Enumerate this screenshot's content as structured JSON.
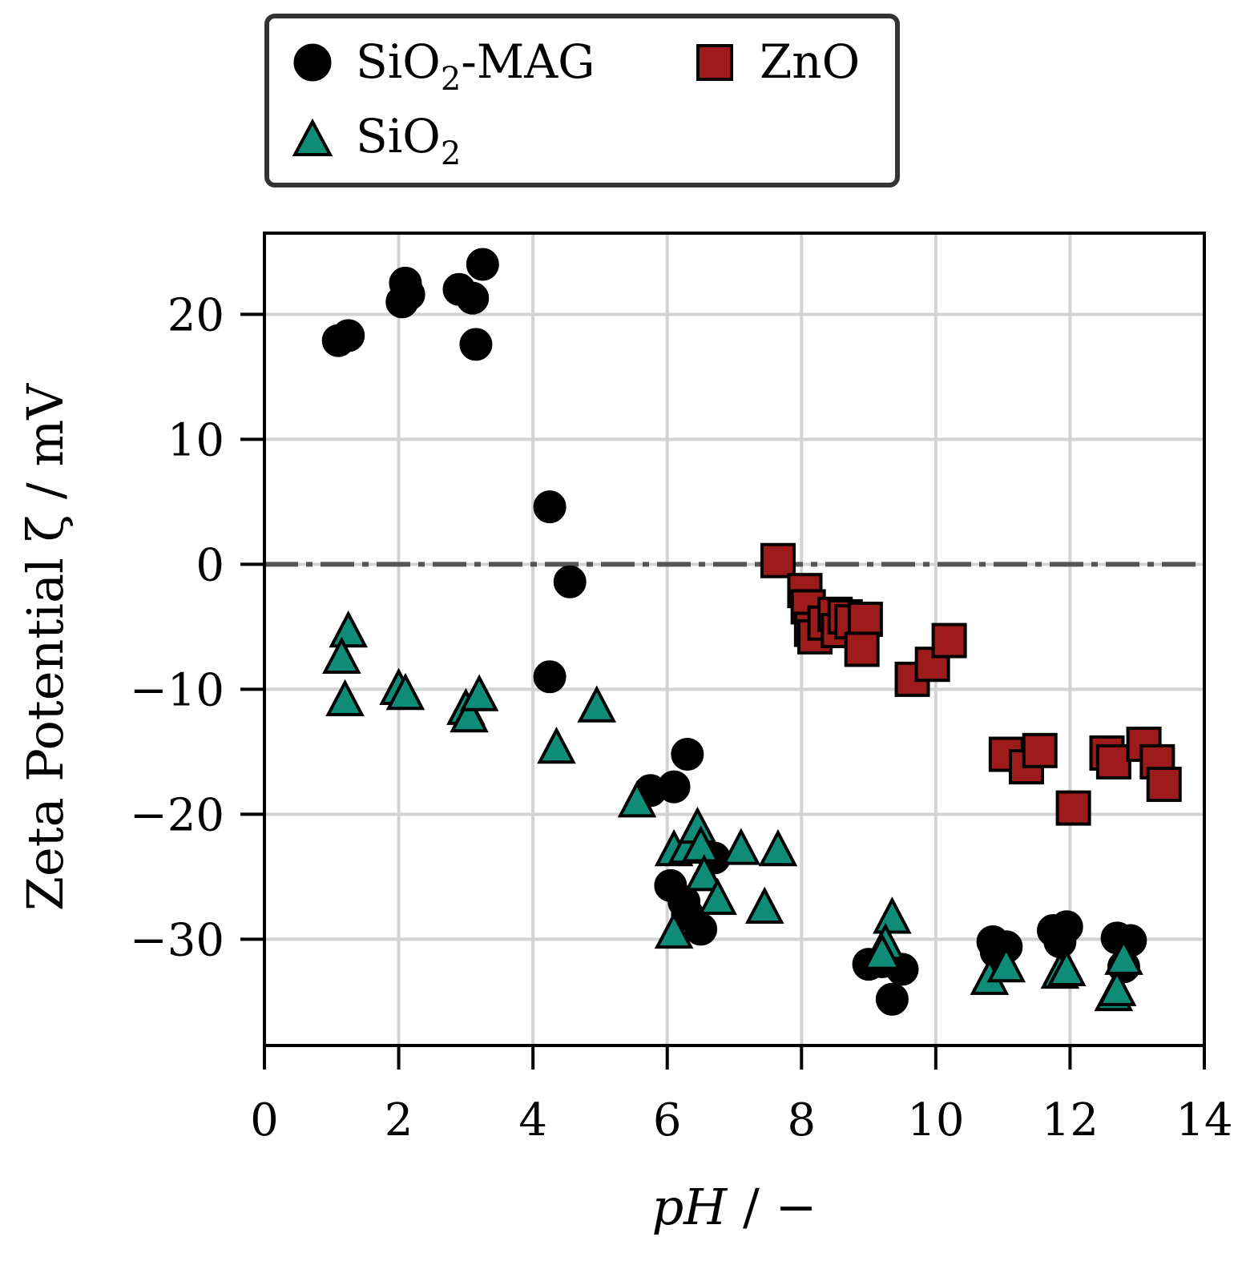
{
  "chart_data": {
    "type": "scatter",
    "title": "",
    "xlabel": "pH",
    "xlabel_suffix": " / −",
    "ylabel": "Zeta Potential ζ / mV",
    "xlim": [
      0,
      14
    ],
    "ylim": [
      -38.5,
      26.5
    ],
    "x_ticks": [
      0,
      2,
      4,
      6,
      8,
      10,
      12,
      14
    ],
    "x_tick_labels": [
      "0",
      "2",
      "4",
      "6",
      "8",
      "10",
      "12",
      "14"
    ],
    "y_ticks": [
      20,
      10,
      0,
      -10,
      -20,
      -30
    ],
    "y_tick_labels": [
      "20",
      "10",
      "0",
      "−10",
      "−20",
      "−30"
    ],
    "grid": true,
    "reference_line": {
      "y": 0,
      "style": "dash-dot",
      "color": "#555555"
    },
    "legend": {
      "placement": "top, above plot",
      "entries": [
        {
          "series": "SiO2-MAG",
          "label_main": "SiO",
          "label_sub": "2",
          "label_tail": "-MAG"
        },
        {
          "series": "ZnO",
          "label_main": "ZnO",
          "label_sub": "",
          "label_tail": ""
        },
        {
          "series": "SiO2",
          "label_main": "SiO",
          "label_sub": "2",
          "label_tail": ""
        }
      ]
    },
    "series": [
      {
        "name": "SiO2-MAG",
        "marker": "circle",
        "color": "#000000",
        "points": [
          [
            1.1,
            17.9
          ],
          [
            1.25,
            18.3
          ],
          [
            2.05,
            21.0
          ],
          [
            2.1,
            22.5
          ],
          [
            2.15,
            21.6
          ],
          [
            2.9,
            22.0
          ],
          [
            3.1,
            21.3
          ],
          [
            3.25,
            24.0
          ],
          [
            3.15,
            17.6
          ],
          [
            4.25,
            4.6
          ],
          [
            4.55,
            -1.4
          ],
          [
            4.25,
            -9.0
          ],
          [
            5.75,
            -18.1
          ],
          [
            6.1,
            -17.8
          ],
          [
            6.3,
            -15.2
          ],
          [
            6.05,
            -25.7
          ],
          [
            6.25,
            -27.0
          ],
          [
            6.3,
            -28.0
          ],
          [
            6.5,
            -29.2
          ],
          [
            6.7,
            -23.5
          ],
          [
            9.0,
            -32.0
          ],
          [
            9.2,
            -31.8
          ],
          [
            9.5,
            -32.4
          ],
          [
            9.35,
            -34.8
          ],
          [
            10.85,
            -30.2
          ],
          [
            10.9,
            -31.0
          ],
          [
            11.05,
            -30.6
          ],
          [
            11.75,
            -29.3
          ],
          [
            11.85,
            -30.2
          ],
          [
            11.95,
            -29.0
          ],
          [
            12.7,
            -29.9
          ],
          [
            12.8,
            -32.2
          ],
          [
            12.9,
            -30.1
          ]
        ]
      },
      {
        "name": "ZnO",
        "marker": "square",
        "color": "#9e1b1b",
        "points": [
          [
            7.65,
            0.3
          ],
          [
            8.05,
            -2.1
          ],
          [
            8.1,
            -3.4
          ],
          [
            8.15,
            -5.2
          ],
          [
            8.2,
            -5.8
          ],
          [
            8.35,
            -4.7
          ],
          [
            8.5,
            -4.0
          ],
          [
            8.55,
            -5.3
          ],
          [
            8.65,
            -4.2
          ],
          [
            8.75,
            -4.6
          ],
          [
            8.95,
            -4.4
          ],
          [
            8.9,
            -6.8
          ],
          [
            9.65,
            -9.2
          ],
          [
            9.95,
            -8.0
          ],
          [
            10.2,
            -6.1
          ],
          [
            11.05,
            -15.2
          ],
          [
            11.35,
            -16.2
          ],
          [
            11.55,
            -14.9
          ],
          [
            12.05,
            -19.5
          ],
          [
            12.55,
            -15.1
          ],
          [
            12.65,
            -15.8
          ],
          [
            13.1,
            -14.4
          ],
          [
            13.3,
            -15.8
          ],
          [
            13.4,
            -17.6
          ]
        ]
      },
      {
        "name": "SiO2",
        "marker": "triangle",
        "color": "#0f8c78",
        "points": [
          [
            1.25,
            -5.5
          ],
          [
            1.15,
            -7.6
          ],
          [
            1.2,
            -11.0
          ],
          [
            2.0,
            -10.1
          ],
          [
            2.1,
            -10.5
          ],
          [
            3.0,
            -11.7
          ],
          [
            3.05,
            -12.3
          ],
          [
            3.2,
            -10.6
          ],
          [
            4.35,
            -14.8
          ],
          [
            4.95,
            -11.5
          ],
          [
            5.55,
            -19.1
          ],
          [
            6.1,
            -23.0
          ],
          [
            6.3,
            -22.8
          ],
          [
            6.45,
            -21.2
          ],
          [
            6.5,
            -22.7
          ],
          [
            6.55,
            -25.0
          ],
          [
            6.75,
            -26.9
          ],
          [
            6.1,
            -29.6
          ],
          [
            7.1,
            -22.9
          ],
          [
            7.45,
            -27.6
          ],
          [
            7.65,
            -23.0
          ],
          [
            9.35,
            -28.4
          ],
          [
            9.25,
            -30.5
          ],
          [
            9.2,
            -31.3
          ],
          [
            10.8,
            -33.3
          ],
          [
            11.05,
            -32.3
          ],
          [
            11.85,
            -32.8
          ],
          [
            11.95,
            -32.6
          ],
          [
            12.65,
            -34.6
          ],
          [
            12.7,
            -34.2
          ],
          [
            12.8,
            -31.7
          ]
        ]
      }
    ]
  }
}
